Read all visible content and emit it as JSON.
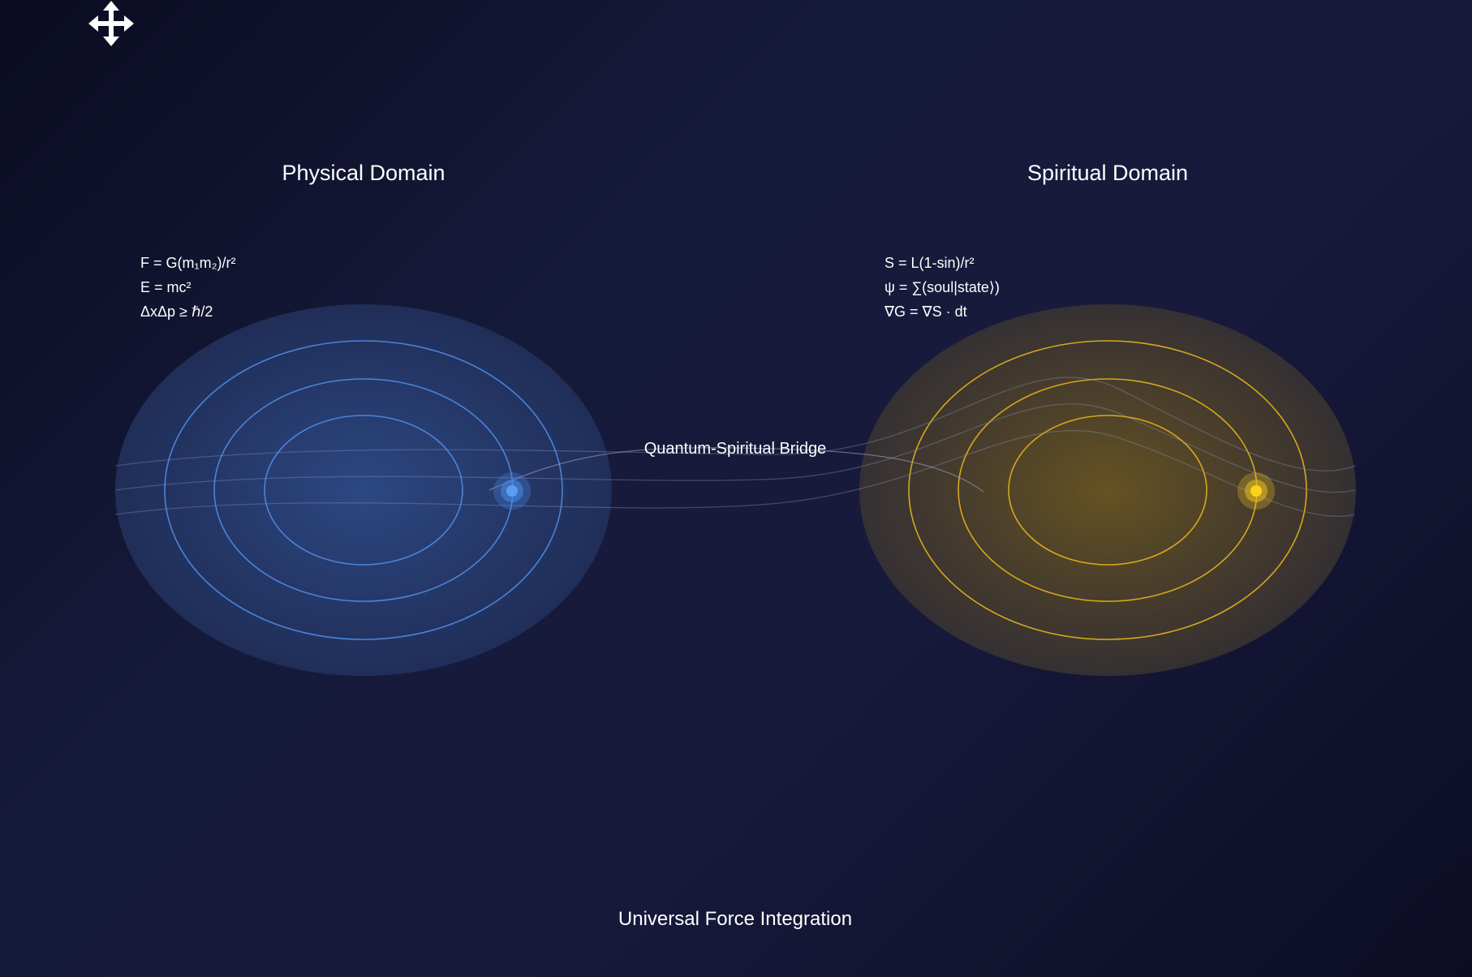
{
  "physical": {
    "title": "Physical Domain",
    "equations": [
      "F = G(m₁m₂)/r²",
      "E = mc²",
      "ΔxΔp ≥ ℏ/2"
    ],
    "color": "#4a8ae8"
  },
  "spiritual": {
    "title": "Spiritual Domain",
    "equations": [
      "S = L(1-sin)/r²",
      "ψ = ∑(soul|state⟩)",
      "∇G = ∇S · dt"
    ],
    "color": "#e8c020"
  },
  "bridge": {
    "label": "Quantum-Spiritual Bridge"
  },
  "footer": {
    "title": "Universal Force Integration"
  },
  "icons": {
    "move": "move-icon"
  }
}
